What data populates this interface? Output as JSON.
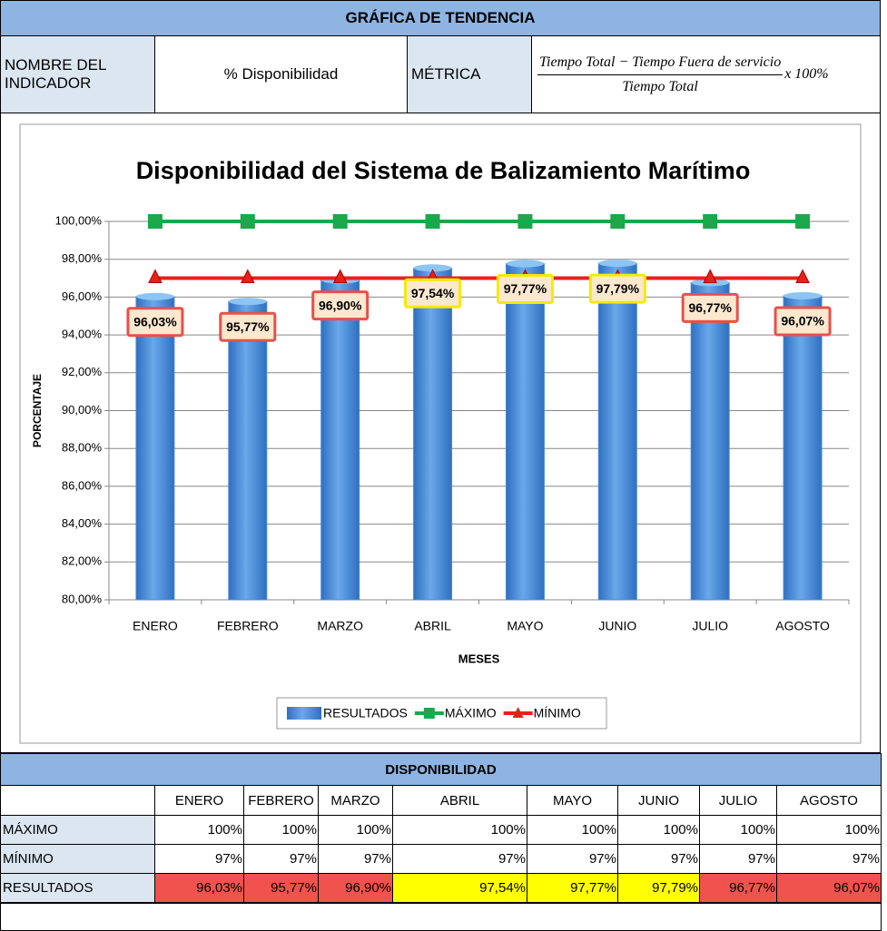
{
  "header": {
    "title": "GRÁFICA DE TENDENCIA",
    "indicator_label": "NOMBRE DEL INDICADOR",
    "indicator": "% Disponibilidad",
    "metric_label": "MÉTRICA",
    "formula_numerator": "Tiempo Total  − Tiempo Fuera de servicio",
    "formula_denominator": "Tiempo Total",
    "formula_factor": "x 100%"
  },
  "chart_data": {
    "type": "bar",
    "title": "Disponibilidad del Sistema de Balizamiento Marítimo",
    "xlabel": "MESES",
    "ylabel": "PORCENTAJE",
    "categories": [
      "ENERO",
      "FEBRERO",
      "MARZO",
      "ABRIL",
      "MAYO",
      "JUNIO",
      "JULIO",
      "AGOSTO"
    ],
    "series": [
      {
        "name": "RESULTADOS",
        "type": "bar",
        "color": "#4a8ad6",
        "values": [
          96.03,
          95.77,
          96.9,
          97.54,
          97.77,
          97.79,
          96.77,
          96.07
        ],
        "value_labels": [
          "96,03%",
          "95,77%",
          "96,90%",
          "97,54%",
          "97,77%",
          "97,79%",
          "96,77%",
          "96,07%"
        ],
        "value_label_colors": [
          "#e8504a",
          "#e8504a",
          "#e8504a",
          "#f5ea00",
          "#f5ea00",
          "#f5ea00",
          "#e8504a",
          "#e8504a"
        ]
      },
      {
        "name": "MÁXIMO",
        "type": "line",
        "color": "#1aa84a",
        "values": [
          100,
          100,
          100,
          100,
          100,
          100,
          100,
          100
        ]
      },
      {
        "name": "MÍNIMO",
        "type": "line",
        "color": "#e8201a",
        "values": [
          97,
          97,
          97,
          97,
          97,
          97,
          97,
          97
        ]
      }
    ],
    "ylim": [
      80,
      100
    ],
    "yticks": [
      {
        "value": 80,
        "label": "80,00%"
      },
      {
        "value": 82,
        "label": "82,00%"
      },
      {
        "value": 84,
        "label": "84,00%"
      },
      {
        "value": 86,
        "label": "86,00%"
      },
      {
        "value": 88,
        "label": "88,00%"
      },
      {
        "value": 90,
        "label": "90,00%"
      },
      {
        "value": 92,
        "label": "92,00%"
      },
      {
        "value": 94,
        "label": "94,00%"
      },
      {
        "value": 96,
        "label": "96,00%"
      },
      {
        "value": 98,
        "label": "98,00%"
      },
      {
        "value": 100,
        "label": "100,00%"
      }
    ],
    "grid": true,
    "legend": "bottom"
  },
  "table": {
    "title": "DISPONIBILIDAD",
    "columns": [
      "ENERO",
      "FEBRERO",
      "MARZO",
      "ABRIL",
      "MAYO",
      "JUNIO",
      "JULIO",
      "AGOSTO"
    ],
    "rows": [
      [
        "MÁXIMO",
        "100%",
        "100%",
        "100%",
        "100%",
        "100%",
        "100%",
        "100%",
        "100%"
      ],
      [
        "MÍNIMO",
        "97%",
        "97%",
        "97%",
        "97%",
        "97%",
        "97%",
        "97%",
        "97%"
      ],
      [
        "RESULTADOS",
        "96,03%",
        "95,77%",
        "96,90%",
        "97,54%",
        "97,77%",
        "97,79%",
        "96,77%",
        "96,07%"
      ]
    ],
    "result_colors": [
      "#f0524d",
      "#f0524d",
      "#f0524d",
      "#ffff00",
      "#ffff00",
      "#ffff00",
      "#f0524d",
      "#f0524d"
    ]
  }
}
